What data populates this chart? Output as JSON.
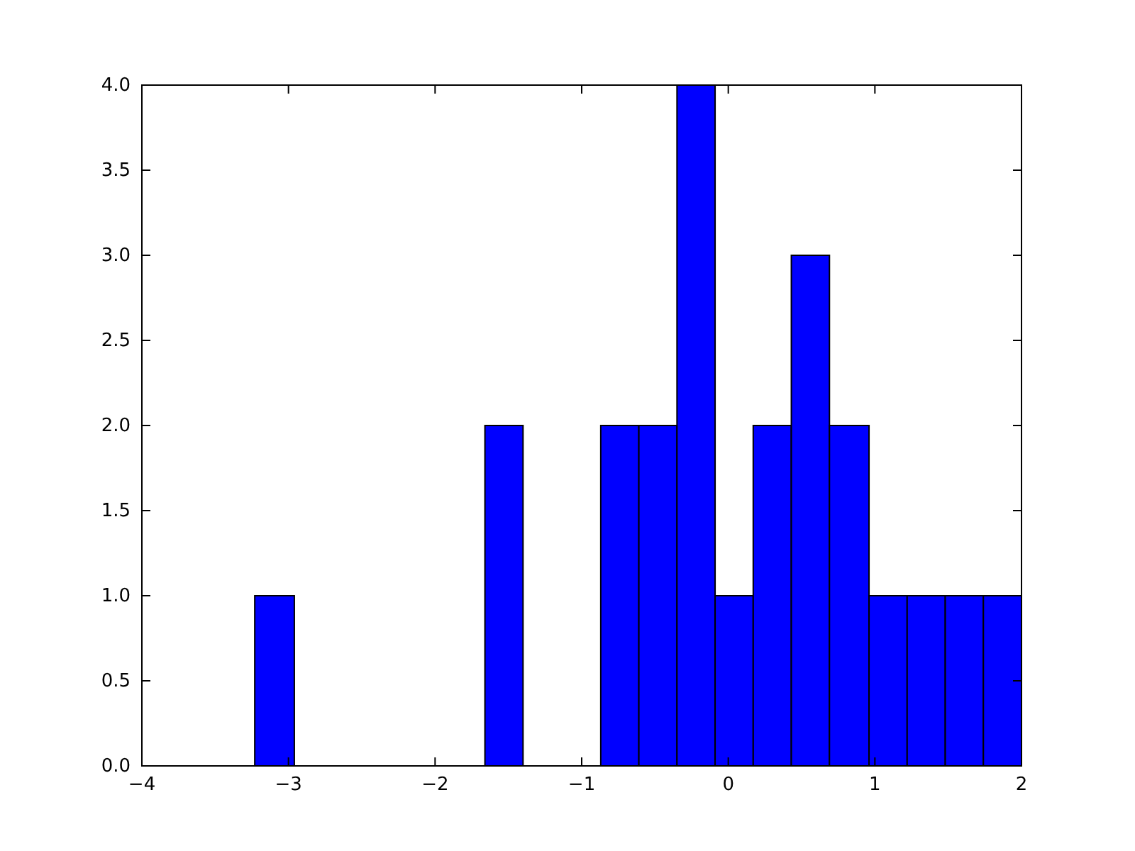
{
  "chart_data": {
    "type": "histogram",
    "bins": [
      -3.23,
      -2.96,
      -1.66,
      -1.4,
      -0.87,
      -0.61,
      -0.35,
      -0.09,
      0.17,
      0.43,
      0.69,
      0.96,
      1.22,
      1.48,
      1.74,
      2.0
    ],
    "values": [
      1,
      0,
      2,
      0,
      2,
      2,
      4,
      1,
      2,
      3,
      2,
      1,
      1,
      1,
      1
    ],
    "color": "#0000ff",
    "xlim": [
      -4,
      2
    ],
    "xticks": [
      {
        "value": -4,
        "label": "−4"
      },
      {
        "value": -3,
        "label": "−3"
      },
      {
        "value": -2,
        "label": "−2"
      },
      {
        "value": -1,
        "label": "−1"
      },
      0,
      1,
      2
    ],
    "ylim": [
      0,
      4
    ],
    "yticks": [
      {
        "value": 0,
        "label": "0.0"
      },
      {
        "value": 0.5,
        "label": "0.5"
      },
      {
        "value": 1,
        "label": "1.0"
      },
      {
        "value": 1.5,
        "label": "1.5"
      },
      {
        "value": 2,
        "label": "2.0"
      },
      {
        "value": 2.5,
        "label": "2.5"
      },
      {
        "value": 3,
        "label": "3.0"
      },
      {
        "value": 3.5,
        "label": "3.5"
      },
      {
        "value": 4,
        "label": "4.0"
      }
    ],
    "grid": false
  }
}
